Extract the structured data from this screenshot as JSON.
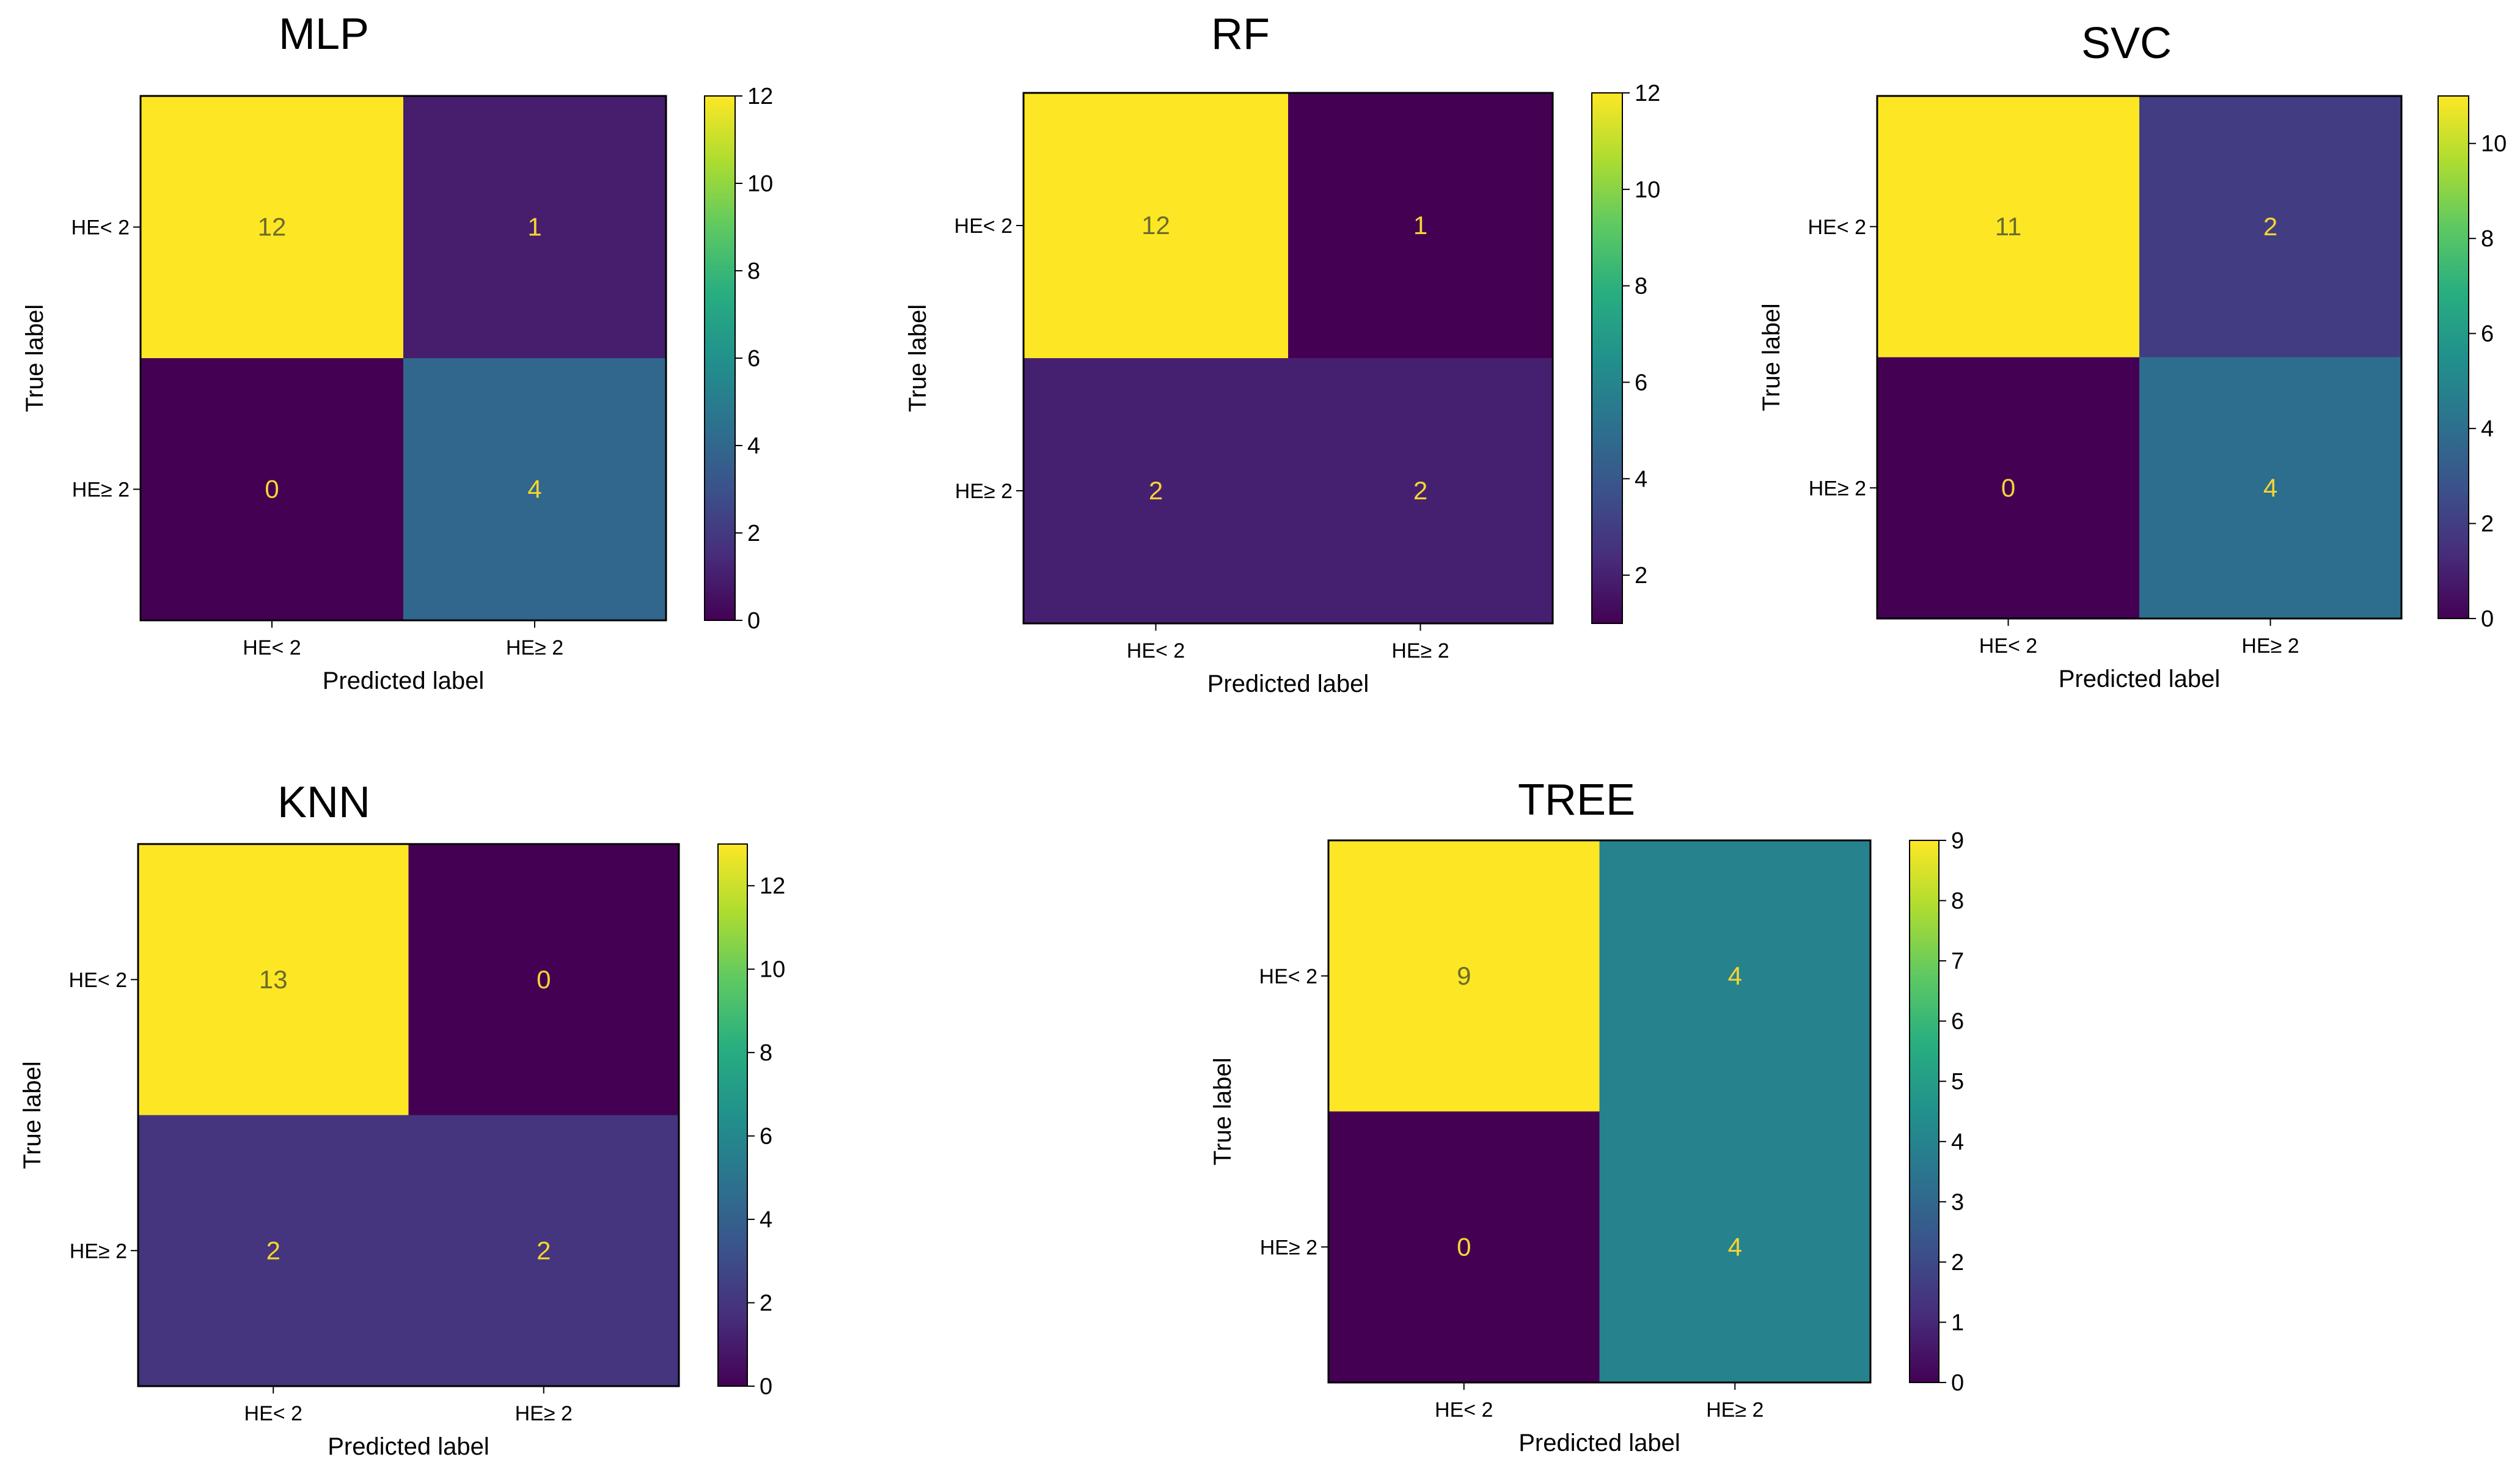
{
  "chart_data": [
    {
      "type": "heatmap",
      "title": "MLP",
      "xlabel": "Predicted label",
      "ylabel": "True label",
      "x_categories": [
        "HE< 2",
        "HE≥ 2"
      ],
      "y_categories": [
        "HE< 2",
        "HE≥ 2"
      ],
      "matrix": [
        [
          12,
          1
        ],
        [
          0,
          4
        ]
      ],
      "vmin": 0,
      "vmax": 12,
      "colorbar_ticks": [
        0,
        2,
        4,
        6,
        8,
        10,
        12
      ],
      "colormap": "viridis"
    },
    {
      "type": "heatmap",
      "title": "RF",
      "xlabel": "Predicted label",
      "ylabel": "True label",
      "x_categories": [
        "HE< 2",
        "HE≥ 2"
      ],
      "y_categories": [
        "HE< 2",
        "HE≥ 2"
      ],
      "matrix": [
        [
          12,
          1
        ],
        [
          2,
          2
        ]
      ],
      "vmin": 1,
      "vmax": 12,
      "colorbar_ticks": [
        2,
        4,
        6,
        8,
        10,
        12
      ],
      "colormap": "viridis"
    },
    {
      "type": "heatmap",
      "title": "SVC",
      "xlabel": "Predicted label",
      "ylabel": "True label",
      "x_categories": [
        "HE< 2",
        "HE≥ 2"
      ],
      "y_categories": [
        "HE< 2",
        "HE≥ 2"
      ],
      "matrix": [
        [
          11,
          2
        ],
        [
          0,
          4
        ]
      ],
      "vmin": 0,
      "vmax": 11,
      "colorbar_ticks": [
        0,
        2,
        4,
        6,
        8,
        10
      ],
      "colormap": "viridis"
    },
    {
      "type": "heatmap",
      "title": "KNN",
      "xlabel": "Predicted label",
      "ylabel": "True label",
      "x_categories": [
        "HE< 2",
        "HE≥ 2"
      ],
      "y_categories": [
        "HE< 2",
        "HE≥ 2"
      ],
      "matrix": [
        [
          13,
          0
        ],
        [
          2,
          2
        ]
      ],
      "vmin": 0,
      "vmax": 13,
      "colorbar_ticks": [
        0,
        2,
        4,
        6,
        8,
        10,
        12
      ],
      "colormap": "viridis"
    },
    {
      "type": "heatmap",
      "title": "TREE",
      "xlabel": "Predicted label",
      "ylabel": "True label",
      "x_categories": [
        "HE< 2",
        "HE≥ 2"
      ],
      "y_categories": [
        "HE< 2",
        "HE≥ 2"
      ],
      "matrix": [
        [
          9,
          4
        ],
        [
          0,
          4
        ]
      ],
      "vmin": 0,
      "vmax": 9,
      "colorbar_ticks": [
        0,
        1,
        2,
        3,
        4,
        5,
        6,
        7,
        8,
        9
      ],
      "colormap": "viridis"
    }
  ]
}
